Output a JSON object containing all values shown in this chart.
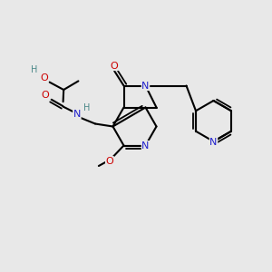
{
  "bg_color": "#e8e8e8",
  "C": "#000000",
  "N": "#2020cc",
  "O": "#cc0000",
  "H": "#4a8888",
  "bw": 1.5,
  "bw2": 1.3,
  "fs": 7.5,
  "off": 0.09
}
